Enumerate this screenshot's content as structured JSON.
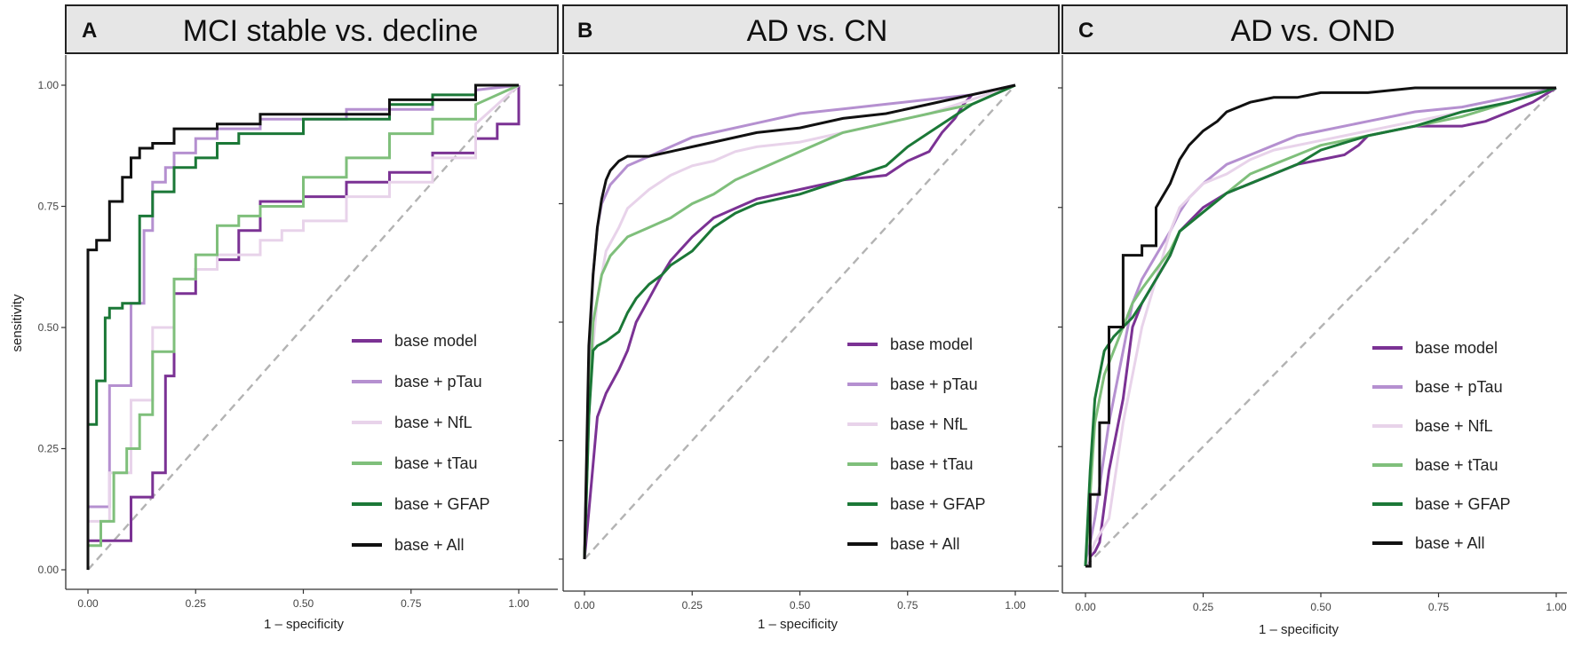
{
  "chart_data": [
    {
      "type": "line",
      "panel_label": "A",
      "title": "MCI stable vs. decline",
      "xlabel": "1 – specificity",
      "ylabel": "sensitivity",
      "xlim": [
        0,
        1
      ],
      "ylim": [
        0,
        1
      ],
      "xticks": [
        "0.00",
        "0.25",
        "0.50",
        "0.75",
        "1.00"
      ],
      "yticks": [
        "0.00",
        "0.25",
        "0.50",
        "0.75",
        "1.00"
      ],
      "grid": false,
      "legend_position": "bottom-right",
      "series": [
        {
          "name": "base model",
          "color": "#7b3294",
          "x": [
            0,
            0,
            0.1,
            0.1,
            0.15,
            0.15,
            0.18,
            0.18,
            0.2,
            0.2,
            0.25,
            0.25,
            0.3,
            0.3,
            0.35,
            0.35,
            0.4,
            0.4,
            0.5,
            0.5,
            0.6,
            0.6,
            0.7,
            0.7,
            0.8,
            0.8,
            0.9,
            0.9,
            0.95,
            0.95,
            1,
            1
          ],
          "y": [
            0,
            0.06,
            0.06,
            0.15,
            0.15,
            0.2,
            0.2,
            0.4,
            0.4,
            0.57,
            0.57,
            0.62,
            0.62,
            0.64,
            0.64,
            0.7,
            0.7,
            0.76,
            0.76,
            0.77,
            0.77,
            0.8,
            0.8,
            0.82,
            0.82,
            0.86,
            0.86,
            0.89,
            0.89,
            0.92,
            0.92,
            1
          ]
        },
        {
          "name": "base + pTau",
          "color": "#b590d0",
          "x": [
            0,
            0,
            0.05,
            0.05,
            0.1,
            0.1,
            0.13,
            0.13,
            0.15,
            0.15,
            0.18,
            0.18,
            0.2,
            0.2,
            0.25,
            0.25,
            0.3,
            0.3,
            0.4,
            0.4,
            0.6,
            0.6,
            0.8,
            0.8,
            0.9,
            0.9,
            1
          ],
          "y": [
            0,
            0.13,
            0.13,
            0.38,
            0.38,
            0.55,
            0.55,
            0.7,
            0.7,
            0.8,
            0.8,
            0.83,
            0.83,
            0.86,
            0.86,
            0.89,
            0.89,
            0.91,
            0.91,
            0.93,
            0.93,
            0.95,
            0.95,
            0.97,
            0.97,
            0.99,
            1
          ]
        },
        {
          "name": "base + NfL",
          "color": "#e8d3ea",
          "x": [
            0,
            0,
            0.05,
            0.05,
            0.1,
            0.1,
            0.15,
            0.15,
            0.2,
            0.2,
            0.25,
            0.25,
            0.3,
            0.3,
            0.4,
            0.4,
            0.45,
            0.45,
            0.5,
            0.5,
            0.6,
            0.6,
            0.7,
            0.7,
            0.8,
            0.8,
            0.9,
            0.9,
            1
          ],
          "y": [
            0,
            0.1,
            0.1,
            0.2,
            0.2,
            0.35,
            0.35,
            0.5,
            0.5,
            0.6,
            0.6,
            0.62,
            0.62,
            0.65,
            0.65,
            0.68,
            0.68,
            0.7,
            0.7,
            0.72,
            0.72,
            0.77,
            0.77,
            0.8,
            0.8,
            0.85,
            0.85,
            0.92,
            1
          ]
        },
        {
          "name": "base + tTau",
          "color": "#7fbf7b",
          "x": [
            0,
            0,
            0.03,
            0.03,
            0.06,
            0.06,
            0.09,
            0.09,
            0.12,
            0.12,
            0.15,
            0.15,
            0.2,
            0.2,
            0.25,
            0.25,
            0.3,
            0.3,
            0.35,
            0.35,
            0.4,
            0.4,
            0.5,
            0.5,
            0.6,
            0.6,
            0.7,
            0.7,
            0.8,
            0.8,
            0.9,
            0.9,
            1
          ],
          "y": [
            0,
            0.05,
            0.05,
            0.1,
            0.1,
            0.2,
            0.2,
            0.25,
            0.25,
            0.32,
            0.32,
            0.45,
            0.45,
            0.6,
            0.6,
            0.65,
            0.65,
            0.71,
            0.71,
            0.73,
            0.73,
            0.75,
            0.75,
            0.81,
            0.81,
            0.85,
            0.85,
            0.9,
            0.9,
            0.93,
            0.93,
            0.96,
            1
          ]
        },
        {
          "name": "base + GFAP",
          "color": "#1b7837",
          "x": [
            0,
            0,
            0.02,
            0.02,
            0.04,
            0.04,
            0.05,
            0.05,
            0.08,
            0.08,
            0.12,
            0.12,
            0.15,
            0.15,
            0.2,
            0.2,
            0.25,
            0.25,
            0.3,
            0.3,
            0.35,
            0.35,
            0.5,
            0.5,
            0.7,
            0.7,
            0.8,
            0.8,
            0.9,
            0.9,
            1
          ],
          "y": [
            0,
            0.3,
            0.3,
            0.39,
            0.39,
            0.52,
            0.52,
            0.54,
            0.54,
            0.55,
            0.55,
            0.73,
            0.73,
            0.78,
            0.78,
            0.83,
            0.83,
            0.85,
            0.85,
            0.88,
            0.88,
            0.9,
            0.9,
            0.93,
            0.93,
            0.96,
            0.96,
            0.98,
            0.98,
            1,
            1
          ]
        },
        {
          "name": "base + All",
          "color": "#111111",
          "x": [
            0,
            0,
            0.02,
            0.02,
            0.05,
            0.05,
            0.08,
            0.08,
            0.1,
            0.1,
            0.12,
            0.12,
            0.15,
            0.15,
            0.2,
            0.2,
            0.3,
            0.3,
            0.4,
            0.4,
            0.7,
            0.7,
            0.9,
            0.9,
            1
          ],
          "y": [
            0,
            0.66,
            0.66,
            0.68,
            0.68,
            0.76,
            0.76,
            0.81,
            0.81,
            0.85,
            0.85,
            0.87,
            0.87,
            0.88,
            0.88,
            0.91,
            0.91,
            0.92,
            0.92,
            0.94,
            0.94,
            0.97,
            0.97,
            1,
            1
          ]
        }
      ]
    },
    {
      "type": "line",
      "panel_label": "B",
      "title": "AD vs. CN",
      "xlabel": "1 – specificity",
      "ylabel": "",
      "xlim": [
        0,
        1
      ],
      "ylim": [
        0,
        1
      ],
      "xticks": [
        "0.00",
        "0.25",
        "0.50",
        "0.75",
        "1.00"
      ],
      "yticks": [
        "0.00",
        "0.25",
        "0.50",
        "0.75",
        "1.00"
      ],
      "grid": false,
      "legend_position": "bottom-right",
      "series": [
        {
          "name": "base model",
          "color": "#7b3294",
          "x": [
            0,
            0.01,
            0.02,
            0.03,
            0.05,
            0.08,
            0.1,
            0.12,
            0.15,
            0.18,
            0.2,
            0.25,
            0.3,
            0.35,
            0.4,
            0.5,
            0.6,
            0.7,
            0.75,
            0.8,
            0.83,
            0.86,
            0.88,
            0.9,
            1
          ],
          "y": [
            0,
            0.1,
            0.2,
            0.3,
            0.35,
            0.4,
            0.44,
            0.5,
            0.55,
            0.6,
            0.63,
            0.68,
            0.72,
            0.74,
            0.76,
            0.78,
            0.8,
            0.81,
            0.84,
            0.86,
            0.9,
            0.93,
            0.96,
            0.98,
            1
          ]
        },
        {
          "name": "base + pTau",
          "color": "#b590d0",
          "x": [
            0,
            0.01,
            0.02,
            0.03,
            0.04,
            0.05,
            0.06,
            0.08,
            0.1,
            0.15,
            0.2,
            0.25,
            0.3,
            0.4,
            0.5,
            0.6,
            0.7,
            0.8,
            0.9,
            1
          ],
          "y": [
            0,
            0.4,
            0.6,
            0.7,
            0.75,
            0.77,
            0.79,
            0.81,
            0.83,
            0.85,
            0.87,
            0.89,
            0.9,
            0.92,
            0.94,
            0.95,
            0.96,
            0.97,
            0.98,
            1
          ]
        },
        {
          "name": "base + NfL",
          "color": "#e8d3ea",
          "x": [
            0,
            0.01,
            0.03,
            0.05,
            0.08,
            0.1,
            0.15,
            0.2,
            0.25,
            0.3,
            0.35,
            0.4,
            0.5,
            0.6,
            0.7,
            0.8,
            0.9,
            1
          ],
          "y": [
            0,
            0.35,
            0.55,
            0.65,
            0.7,
            0.74,
            0.78,
            0.81,
            0.83,
            0.84,
            0.86,
            0.87,
            0.88,
            0.9,
            0.92,
            0.94,
            0.97,
            1
          ]
        },
        {
          "name": "base + tTau",
          "color": "#7fbf7b",
          "x": [
            0,
            0.01,
            0.02,
            0.04,
            0.06,
            0.08,
            0.1,
            0.15,
            0.2,
            0.25,
            0.3,
            0.35,
            0.4,
            0.45,
            0.5,
            0.55,
            0.6,
            0.7,
            0.8,
            0.9,
            1
          ],
          "y": [
            0,
            0.3,
            0.5,
            0.6,
            0.64,
            0.66,
            0.68,
            0.7,
            0.72,
            0.75,
            0.77,
            0.8,
            0.82,
            0.84,
            0.86,
            0.88,
            0.9,
            0.92,
            0.94,
            0.96,
            1
          ]
        },
        {
          "name": "base + GFAP",
          "color": "#1b7837",
          "x": [
            0,
            0.01,
            0.02,
            0.03,
            0.05,
            0.08,
            0.1,
            0.12,
            0.15,
            0.18,
            0.2,
            0.25,
            0.3,
            0.35,
            0.4,
            0.5,
            0.6,
            0.7,
            0.75,
            0.8,
            0.85,
            0.9,
            1
          ],
          "y": [
            0,
            0.3,
            0.44,
            0.45,
            0.46,
            0.48,
            0.52,
            0.55,
            0.58,
            0.6,
            0.62,
            0.65,
            0.7,
            0.73,
            0.75,
            0.77,
            0.8,
            0.83,
            0.87,
            0.9,
            0.93,
            0.96,
            1
          ]
        },
        {
          "name": "base + All",
          "color": "#111111",
          "x": [
            0,
            0.01,
            0.02,
            0.03,
            0.04,
            0.05,
            0.06,
            0.08,
            0.1,
            0.15,
            0.2,
            0.25,
            0.3,
            0.4,
            0.5,
            0.6,
            0.7,
            0.8,
            0.9,
            1
          ],
          "y": [
            0,
            0.45,
            0.6,
            0.7,
            0.76,
            0.8,
            0.82,
            0.84,
            0.85,
            0.85,
            0.86,
            0.87,
            0.88,
            0.9,
            0.91,
            0.93,
            0.94,
            0.96,
            0.98,
            1
          ]
        }
      ]
    },
    {
      "type": "line",
      "panel_label": "C",
      "title": "AD vs. OND",
      "xlabel": "1 – specificity",
      "ylabel": "",
      "xlim": [
        0,
        1
      ],
      "ylim": [
        0,
        1
      ],
      "xticks": [
        "0.00",
        "0.25",
        "0.50",
        "0.75",
        "1.00"
      ],
      "yticks": [
        "0.00",
        "0.25",
        "0.50",
        "0.75",
        "1.00"
      ],
      "grid": false,
      "legend_position": "bottom-right",
      "series": [
        {
          "name": "base model",
          "color": "#7b3294",
          "x": [
            0,
            0.01,
            0.02,
            0.03,
            0.05,
            0.08,
            0.1,
            0.12,
            0.15,
            0.18,
            0.2,
            0.25,
            0.3,
            0.35,
            0.4,
            0.45,
            0.5,
            0.55,
            0.58,
            0.6,
            0.65,
            0.7,
            0.8,
            0.85,
            0.9,
            0.95,
            1
          ],
          "y": [
            0,
            0.02,
            0.03,
            0.05,
            0.2,
            0.35,
            0.5,
            0.55,
            0.6,
            0.65,
            0.7,
            0.75,
            0.78,
            0.8,
            0.82,
            0.84,
            0.85,
            0.86,
            0.88,
            0.9,
            0.91,
            0.92,
            0.92,
            0.93,
            0.95,
            0.97,
            1
          ]
        },
        {
          "name": "base + pTau",
          "color": "#b590d0",
          "x": [
            0,
            0.02,
            0.05,
            0.08,
            0.1,
            0.12,
            0.15,
            0.18,
            0.2,
            0.22,
            0.25,
            0.3,
            0.35,
            0.4,
            0.45,
            0.5,
            0.6,
            0.7,
            0.8,
            0.9,
            1
          ],
          "y": [
            0,
            0.1,
            0.3,
            0.45,
            0.55,
            0.6,
            0.65,
            0.7,
            0.74,
            0.77,
            0.8,
            0.84,
            0.86,
            0.88,
            0.9,
            0.91,
            0.93,
            0.95,
            0.96,
            0.98,
            1
          ]
        },
        {
          "name": "base + NfL",
          "color": "#e8d3ea",
          "x": [
            0,
            0.02,
            0.05,
            0.08,
            0.1,
            0.12,
            0.15,
            0.18,
            0.2,
            0.25,
            0.3,
            0.35,
            0.4,
            0.5,
            0.6,
            0.7,
            0.8,
            0.9,
            1
          ],
          "y": [
            0,
            0.05,
            0.1,
            0.3,
            0.4,
            0.5,
            0.6,
            0.7,
            0.75,
            0.8,
            0.82,
            0.85,
            0.87,
            0.89,
            0.91,
            0.93,
            0.95,
            0.97,
            1
          ]
        },
        {
          "name": "base + tTau",
          "color": "#7fbf7b",
          "x": [
            0,
            0.02,
            0.04,
            0.06,
            0.08,
            0.1,
            0.12,
            0.15,
            0.18,
            0.2,
            0.25,
            0.3,
            0.35,
            0.4,
            0.45,
            0.5,
            0.6,
            0.7,
            0.8,
            0.9,
            1
          ],
          "y": [
            0,
            0.3,
            0.4,
            0.45,
            0.5,
            0.55,
            0.58,
            0.62,
            0.66,
            0.7,
            0.74,
            0.78,
            0.82,
            0.84,
            0.86,
            0.88,
            0.9,
            0.92,
            0.94,
            0.97,
            1
          ]
        },
        {
          "name": "base + GFAP",
          "color": "#1b7837",
          "x": [
            0,
            0.01,
            0.02,
            0.04,
            0.06,
            0.08,
            0.1,
            0.12,
            0.15,
            0.18,
            0.2,
            0.25,
            0.3,
            0.35,
            0.4,
            0.45,
            0.5,
            0.6,
            0.7,
            0.8,
            0.9,
            1
          ],
          "y": [
            0,
            0.2,
            0.35,
            0.45,
            0.48,
            0.5,
            0.52,
            0.55,
            0.6,
            0.65,
            0.7,
            0.74,
            0.78,
            0.8,
            0.82,
            0.84,
            0.87,
            0.9,
            0.92,
            0.95,
            0.97,
            1
          ]
        },
        {
          "name": "base + All",
          "color": "#111111",
          "x": [
            0,
            0.01,
            0.01,
            0.03,
            0.03,
            0.05,
            0.05,
            0.08,
            0.08,
            0.12,
            0.12,
            0.15,
            0.15,
            0.18,
            0.2,
            0.22,
            0.25,
            0.28,
            0.3,
            0.35,
            0.4,
            0.45,
            0.5,
            0.6,
            0.7,
            0.8,
            0.9,
            1
          ],
          "y": [
            0,
            0,
            0.15,
            0.15,
            0.3,
            0.3,
            0.5,
            0.5,
            0.65,
            0.65,
            0.67,
            0.67,
            0.75,
            0.8,
            0.85,
            0.88,
            0.91,
            0.93,
            0.95,
            0.97,
            0.98,
            0.98,
            0.99,
            0.99,
            1,
            1,
            1,
            1
          ]
        }
      ]
    }
  ]
}
